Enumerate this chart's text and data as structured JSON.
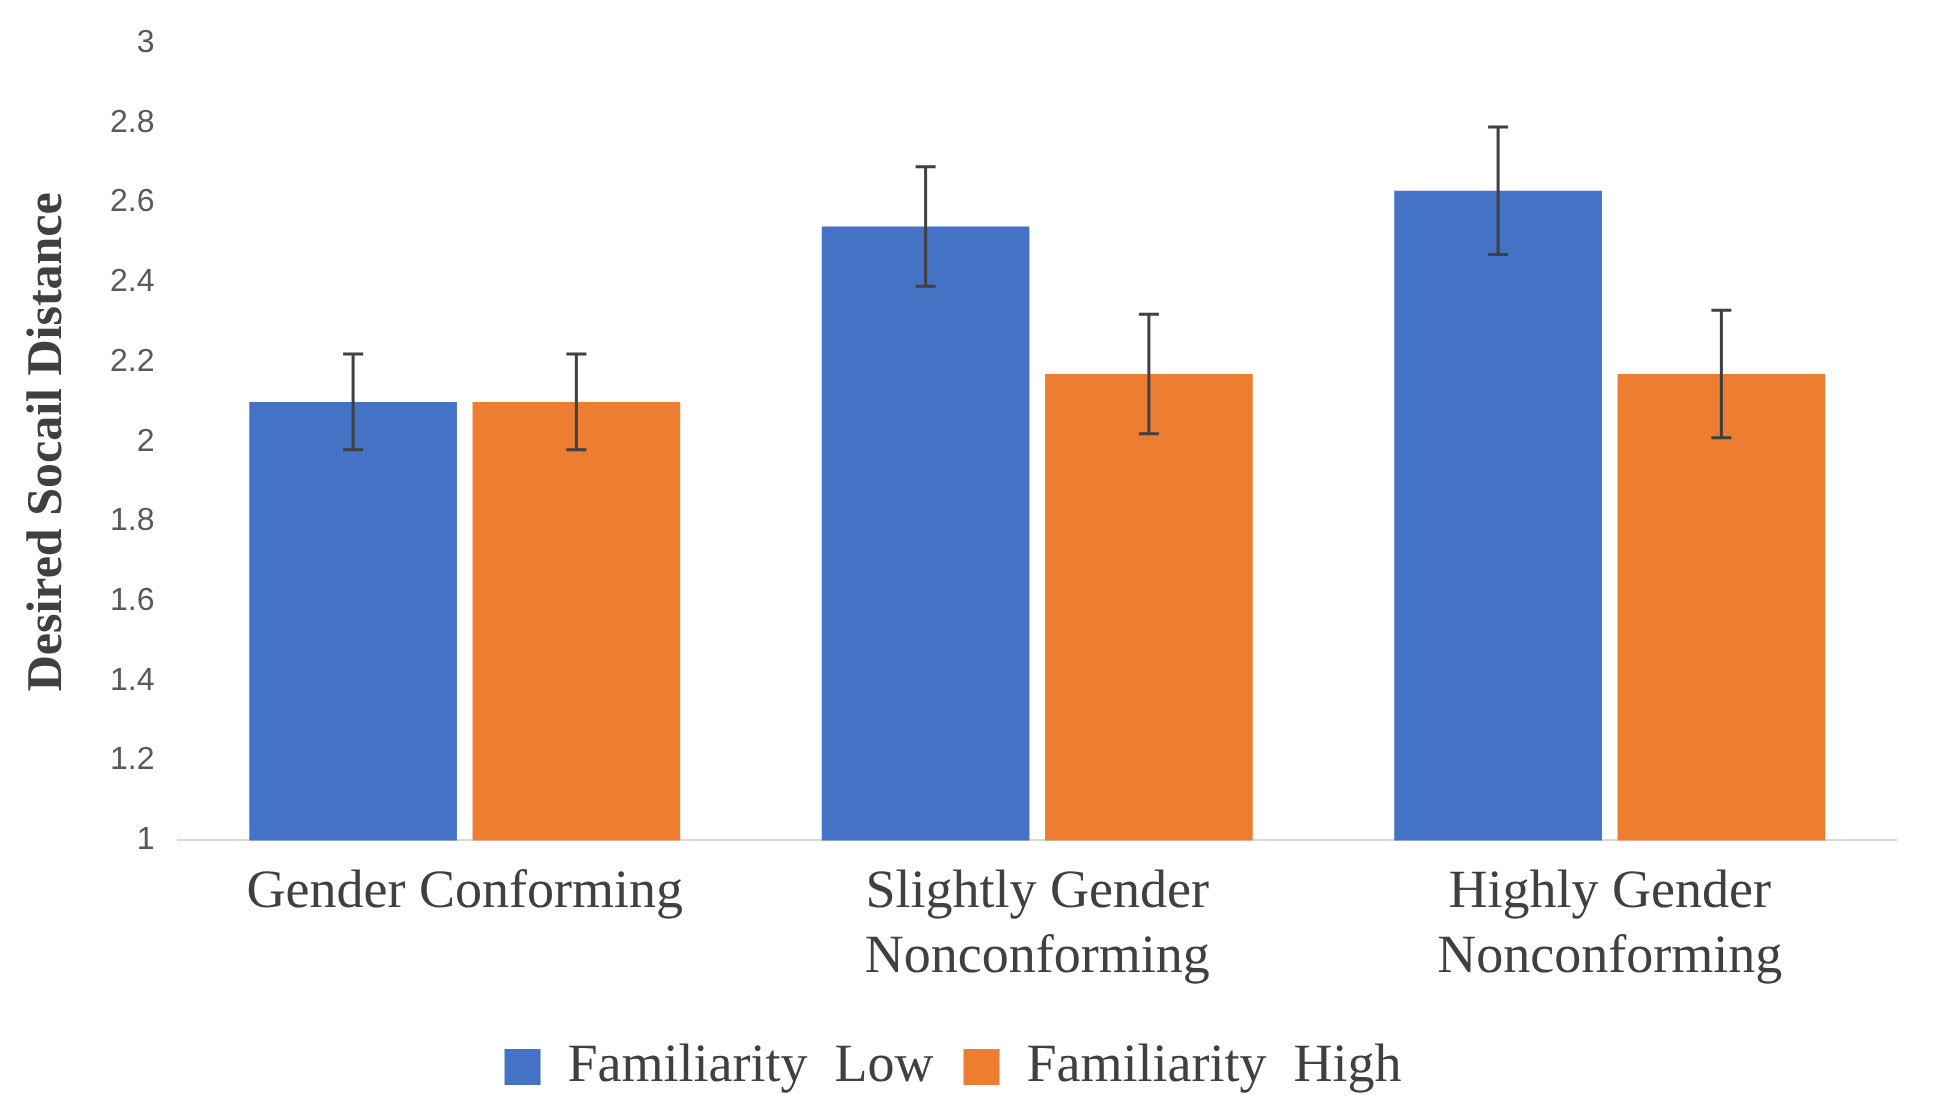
{
  "chart_data": {
    "type": "bar",
    "ylabel": "Desired Socail Distance",
    "categories": [
      "Gender Conforming",
      "Slightly Gender Nonconforming",
      "Highly Gender Nonconforming"
    ],
    "series": [
      {
        "name": "Familiarity  Low",
        "color": "#4472c4",
        "values": [
          2.1,
          2.54,
          2.63
        ],
        "errors": [
          0.12,
          0.15,
          0.16
        ]
      },
      {
        "name": "Familiarity  High",
        "color": "#ed7d31",
        "values": [
          2.1,
          2.17,
          2.17
        ],
        "errors": [
          0.12,
          0.15,
          0.16
        ]
      }
    ],
    "ylim": [
      1,
      3
    ],
    "yticks": [
      1,
      1.2,
      1.4,
      1.6,
      1.8,
      2,
      2.2,
      2.4,
      2.6,
      2.8,
      3
    ],
    "grid": false,
    "legend": "bottom"
  }
}
